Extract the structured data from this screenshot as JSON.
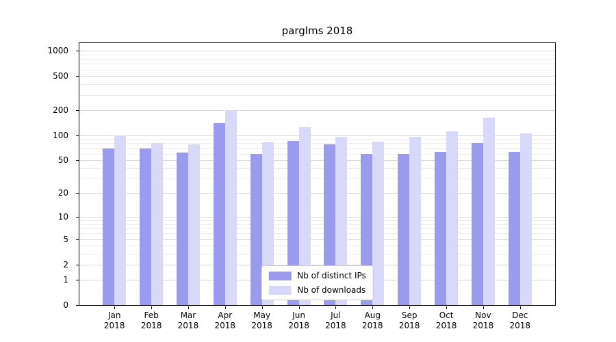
{
  "chart_data": {
    "type": "bar",
    "title": "parglms 2018",
    "categories": [
      "Jan",
      "Feb",
      "Mar",
      "Apr",
      "May",
      "Jun",
      "Jul",
      "Aug",
      "Sep",
      "Oct",
      "Nov",
      "Dec"
    ],
    "year": "2018",
    "series": [
      {
        "name": "Nb of distinct IPs",
        "color": "#9a9aef",
        "values": [
          70,
          70,
          62,
          140,
          60,
          85,
          78,
          60,
          60,
          63,
          80,
          63
        ]
      },
      {
        "name": "Nb of downloads",
        "color": "#d8d8f8",
        "values": [
          100,
          80,
          77,
          200,
          83,
          125,
          95,
          84,
          95,
          112,
          160,
          105
        ]
      }
    ],
    "xlabel": "",
    "ylabel": "",
    "y_scale": "log1p",
    "ylim": [
      0,
      1228
    ],
    "y_ticks": [
      0,
      1,
      2,
      5,
      10,
      20,
      50,
      100,
      200,
      500,
      1000
    ],
    "y_minor_ticks": [
      3,
      4,
      6,
      7,
      8,
      9,
      30,
      40,
      60,
      70,
      80,
      90,
      300,
      400,
      600,
      700,
      800,
      900
    ],
    "grid": true,
    "grid_major_color": "#d7d7d7",
    "grid_minor_color": "#ebebeb",
    "legend_position": "lower center"
  },
  "legend": {
    "items": [
      {
        "label": "Nb of distinct IPs",
        "color": "#9a9aef"
      },
      {
        "label": "Nb of downloads",
        "color": "#d8d8f8"
      }
    ]
  }
}
